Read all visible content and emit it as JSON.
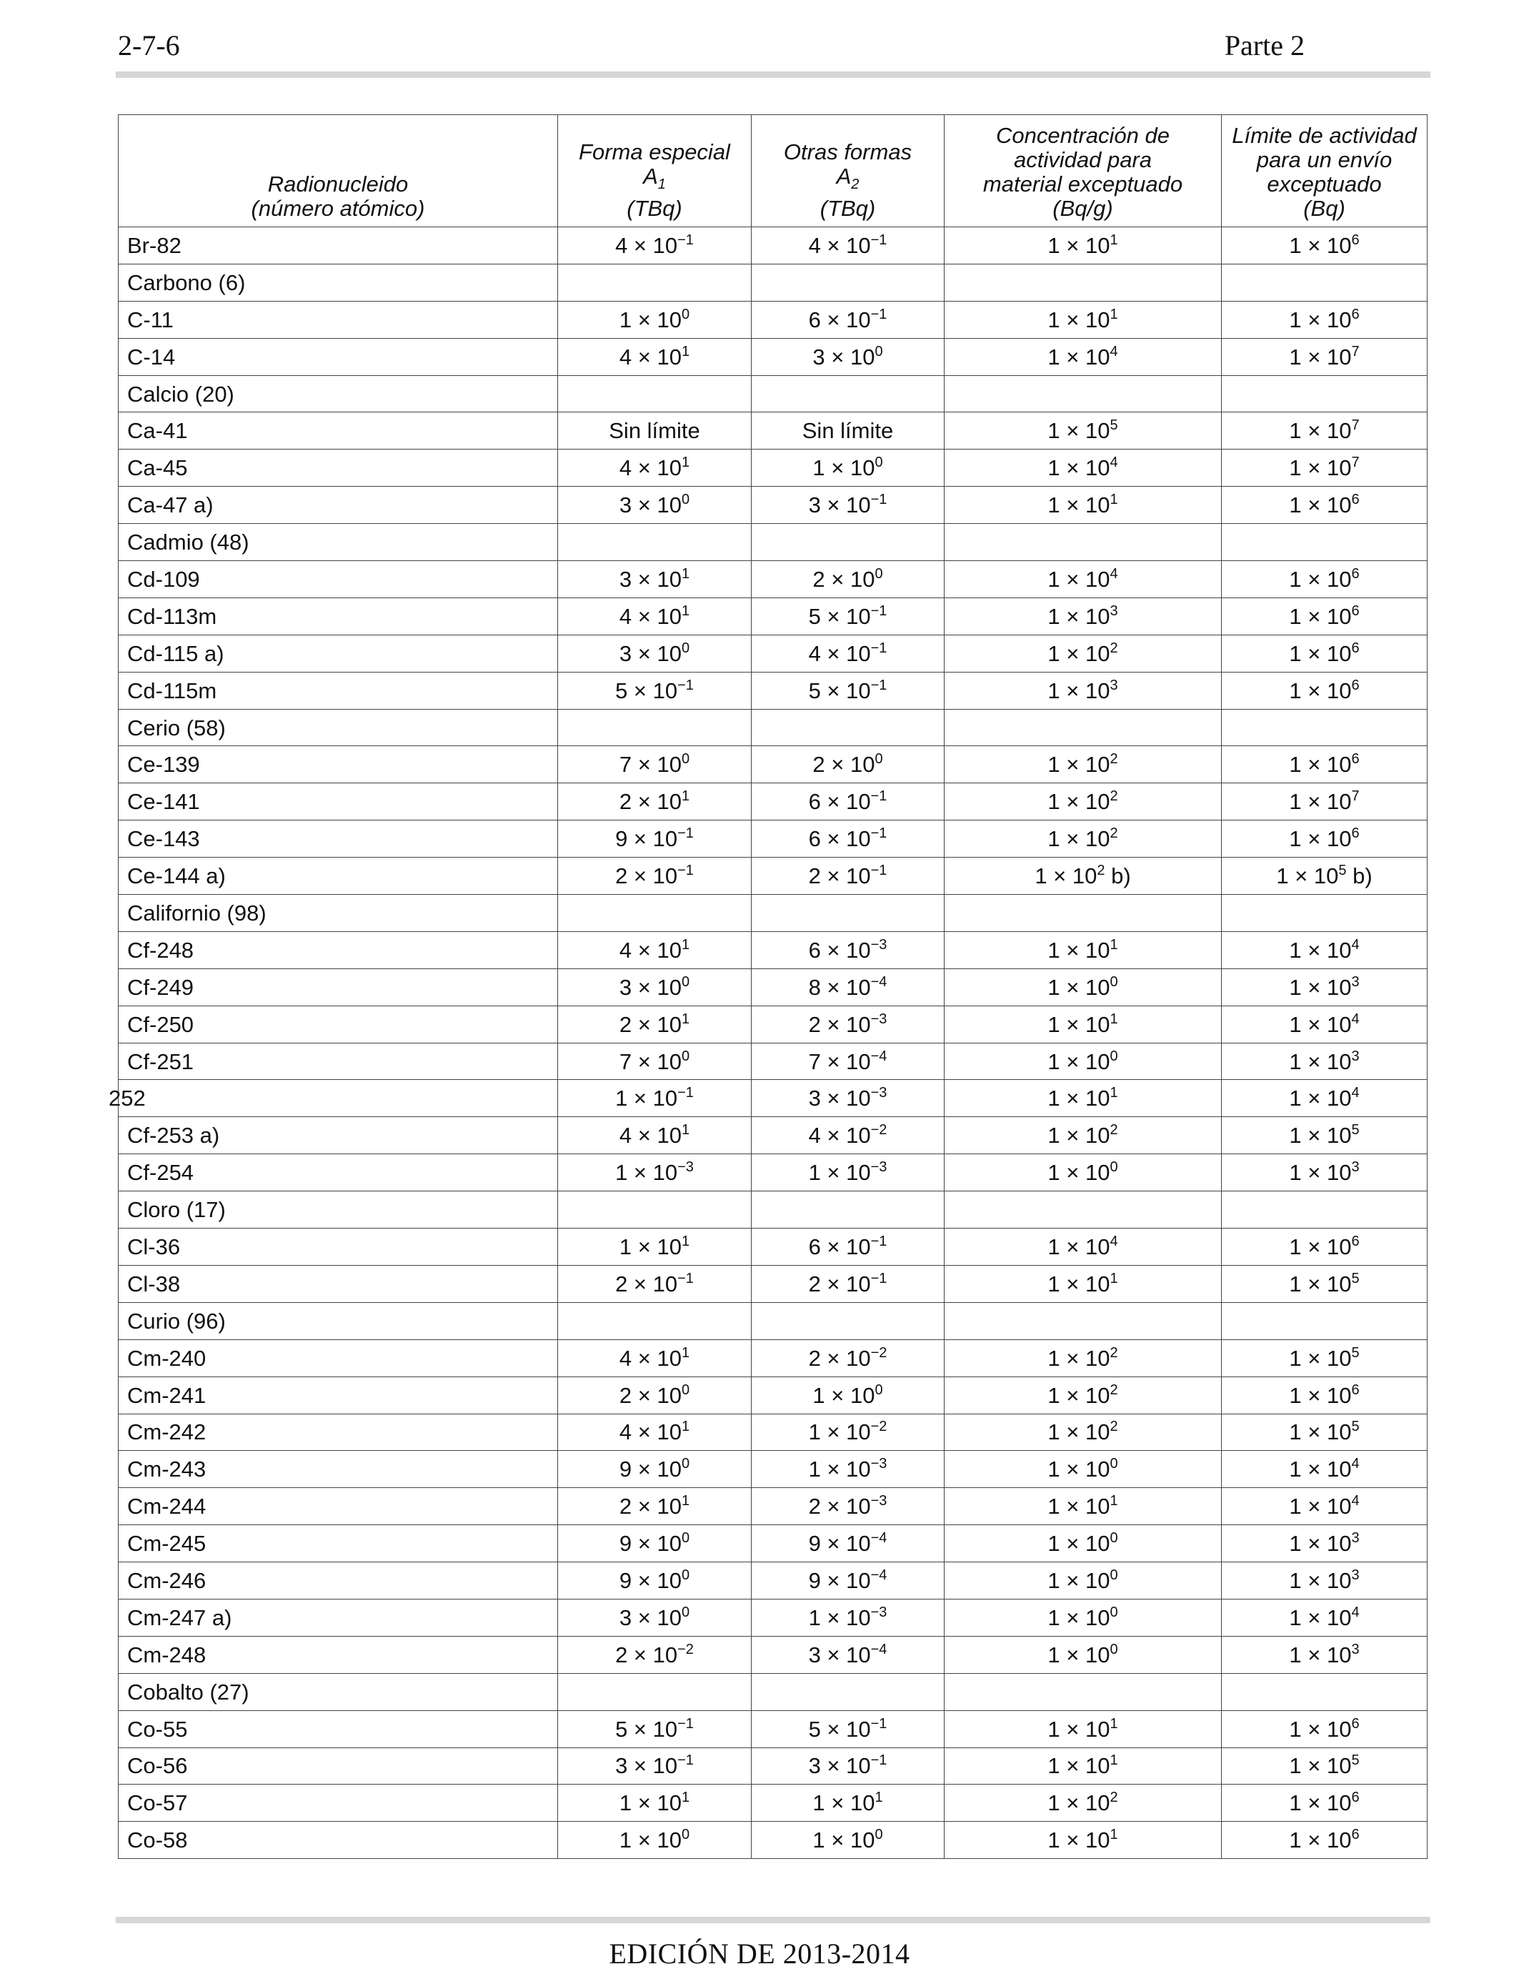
{
  "header": {
    "page_number": "2-7-6",
    "part": "Parte 2"
  },
  "footer": {
    "edition": "EDICIÓN DE 2013-2014"
  },
  "table": {
    "columns": [
      {
        "lines": [
          "Radionucleido",
          "(número atómico)"
        ]
      },
      {
        "lines": [
          "Forma especial",
          "A1",
          "(TBq)"
        ]
      },
      {
        "lines": [
          "Otras formas",
          "A2",
          "(TBq)"
        ]
      },
      {
        "lines": [
          "Concentración de",
          "actividad para",
          "material exceptuado",
          "(Bq/g)"
        ]
      },
      {
        "lines": [
          "Límite de actividad",
          "para un envío",
          "exceptuado",
          "(Bq)"
        ]
      }
    ],
    "rows": [
      [
        "Br-82",
        "4 × 10^-1",
        "4 × 10^-1",
        "1 × 10^1",
        "1 × 10^6"
      ],
      [
        "Carbono (6)",
        "",
        "",
        "",
        ""
      ],
      [
        "C-11",
        "1 × 10^0",
        "6 × 10^-1",
        "1 × 10^1",
        "1 × 10^6"
      ],
      [
        "C-14",
        "4 × 10^1",
        "3 × 10^0",
        "1 × 10^4",
        "1 × 10^7"
      ],
      [
        "Calcio (20)",
        "",
        "",
        "",
        ""
      ],
      [
        "Ca-41",
        "Sin límite",
        "Sin límite",
        "1 × 10^5",
        "1 × 10^7"
      ],
      [
        "Ca-45",
        "4 × 10^1",
        "1 × 10^0",
        "1 × 10^4",
        "1 × 10^7"
      ],
      [
        "Ca-47 a)",
        "3 × 10^0",
        "3 × 10^-1",
        "1 × 10^1",
        "1 × 10^6"
      ],
      [
        "Cadmio (48)",
        "",
        "",
        "",
        ""
      ],
      [
        "Cd-109",
        "3 × 10^1",
        "2 × 10^0",
        "1 × 10^4",
        "1 × 10^6"
      ],
      [
        "Cd-113m",
        "4 × 10^1",
        "5 × 10^-1",
        "1 × 10^3",
        "1 × 10^6"
      ],
      [
        "Cd-115 a)",
        "3 × 10^0",
        "4 × 10^-1",
        "1 × 10^2",
        "1 × 10^6"
      ],
      [
        "Cd-115m",
        "5 × 10^-1",
        "5 × 10^-1",
        "1 × 10^3",
        "1 × 10^6"
      ],
      [
        "Cerio (58)",
        "",
        "",
        "",
        ""
      ],
      [
        "Ce-139",
        "7 × 10^0",
        "2 × 10^0",
        "1 × 10^2",
        "1 × 10^6"
      ],
      [
        "Ce-141",
        "2 × 10^1",
        "6 × 10^-1",
        "1 × 10^2",
        "1 × 10^7"
      ],
      [
        "Ce-143",
        "9 × 10^-1",
        "6 × 10^-1",
        "1 × 10^2",
        "1 × 10^6"
      ],
      [
        "Ce-144 a)",
        "2 × 10^-1",
        "2 × 10^-1",
        "1 × 10^2 b)",
        "1 × 10^5 b)"
      ],
      [
        "Californio (98)",
        "",
        "",
        "",
        ""
      ],
      [
        "Cf-248",
        "4 × 10^1",
        "6 × 10^-3",
        "1 × 10^1",
        "1 × 10^4"
      ],
      [
        "Cf-249",
        "3 × 10^0",
        "8 × 10^-4",
        "1 × 10^0",
        "1 × 10^3"
      ],
      [
        "Cf-250",
        "2 × 10^1",
        "2 × 10^-3",
        "1 × 10^1",
        "1 × 10^4"
      ],
      [
        "Cf-251",
        "7 × 10^0",
        "7 × 10^-4",
        "1 × 10^0",
        "1 × 10^3"
      ],
      [
        "252",
        "1 × 10^-1",
        "3 × 10^-3",
        "1 × 10^1",
        "1 × 10^4"
      ],
      [
        "Cf-253 a)",
        "4 × 10^1",
        "4 × 10^-2",
        "1 × 10^2",
        "1 × 10^5"
      ],
      [
        "Cf-254",
        "1 × 10^-3",
        "1 × 10^-3",
        "1 × 10^0",
        "1 × 10^3"
      ],
      [
        "Cloro (17)",
        "",
        "",
        "",
        ""
      ],
      [
        "Cl-36",
        "1 × 10^1",
        "6 × 10^-1",
        "1 × 10^4",
        "1 × 10^6"
      ],
      [
        "Cl-38",
        "2 × 10^-1",
        "2 × 10^-1",
        "1 × 10^1",
        "1 × 10^5"
      ],
      [
        "Curio (96)",
        "",
        "",
        "",
        ""
      ],
      [
        "Cm-240",
        "4 × 10^1",
        "2 × 10^-2",
        "1 × 10^2",
        "1 × 10^5"
      ],
      [
        "Cm-241",
        "2 × 10^0",
        "1 × 10^0",
        "1 × 10^2",
        "1 × 10^6"
      ],
      [
        "Cm-242",
        "4 × 10^1",
        "1 × 10^-2",
        "1 × 10^2",
        "1 × 10^5"
      ],
      [
        "Cm-243",
        "9 × 10^0",
        "1 × 10^-3",
        "1 × 10^0",
        "1 × 10^4"
      ],
      [
        "Cm-244",
        "2 × 10^1",
        "2 × 10^-3",
        "1 × 10^1",
        "1 × 10^4"
      ],
      [
        "Cm-245",
        "9 × 10^0",
        "9 × 10^-4",
        "1 × 10^0",
        "1 × 10^3"
      ],
      [
        "Cm-246",
        "9 × 10^0",
        "9 × 10^-4",
        "1 × 10^0",
        "1 × 10^3"
      ],
      [
        "Cm-247 a)",
        "3 × 10^0",
        "1 × 10^-3",
        "1 × 10^0",
        "1 × 10^4"
      ],
      [
        "Cm-248",
        "2 × 10^-2",
        "3 × 10^-4",
        "1 × 10^0",
        "1 × 10^3"
      ],
      [
        "Cobalto (27)",
        "",
        "",
        "",
        ""
      ],
      [
        "Co-55",
        "5 × 10^-1",
        "5 × 10^-1",
        "1 × 10^1",
        "1 × 10^6"
      ],
      [
        "Co-56",
        "3 × 10^-1",
        "3 × 10^-1",
        "1 × 10^1",
        "1 × 10^5"
      ],
      [
        "Co-57",
        "1 × 10^1",
        "1 × 10^1",
        "1 × 10^2",
        "1 × 10^6"
      ],
      [
        "Co-58",
        "1 × 10^0",
        "1 × 10^0",
        "1 × 10^1",
        "1 × 10^6"
      ]
    ]
  }
}
